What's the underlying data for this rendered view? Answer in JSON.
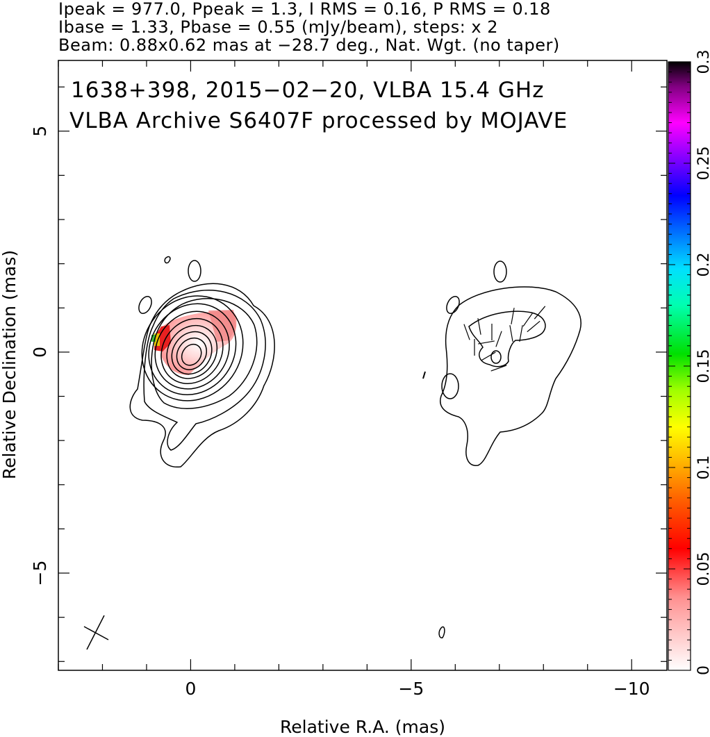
{
  "header": {
    "line1": "Ipeak = 977.0, Ppeak = 1.3, I RMS = 0.16, P RMS = 0.18",
    "line2": "Ibase = 1.33, Pbase = 0.55 (mJy/beam), steps: x 2",
    "line3": "Beam: 0.88x0.62 mas at −28.7 deg., Nat. Wgt. (no taper)"
  },
  "chart_data": {
    "type": "contour",
    "title_line1": "1638+398, 2015−02−20, VLBA 15.4 GHz",
    "title_line2": "VLBA Archive S6407F processed by MOJAVE",
    "xlabel": "Relative R.A. (mas)",
    "ylabel": "Relative Declination (mas)",
    "xlim": [
      3.0,
      -10.8
    ],
    "ylim": [
      -7.2,
      6.6
    ],
    "xticks": [
      0,
      -5,
      -10
    ],
    "xtick_labels": [
      "0",
      "−5",
      "−10"
    ],
    "yticks": [
      5,
      0,
      -5
    ],
    "ytick_labels": [
      "5",
      "0",
      "−5"
    ],
    "colorbar": {
      "range": [
        0,
        0.3
      ],
      "ticks": [
        0,
        0.05,
        0.1,
        0.15,
        0.2,
        0.25,
        0.3
      ],
      "tick_labels": [
        "0",
        "0.05",
        "0.1",
        "0.15",
        "0.2",
        "0.25",
        "0.3"
      ]
    },
    "core": {
      "x": 0.0,
      "y": 0.0
    },
    "jet_component": {
      "x": -7.0,
      "y": 0.3
    },
    "beam": {
      "major_mas": 0.88,
      "minor_mas": 0.62,
      "pa_deg": -28.7,
      "x": 2.2,
      "y": -6.6
    },
    "contour_levels_mjy": [
      1.33,
      2.66,
      5.32,
      10.64,
      21.28,
      42.56,
      85.12,
      170.24,
      340.48,
      680.96
    ]
  }
}
